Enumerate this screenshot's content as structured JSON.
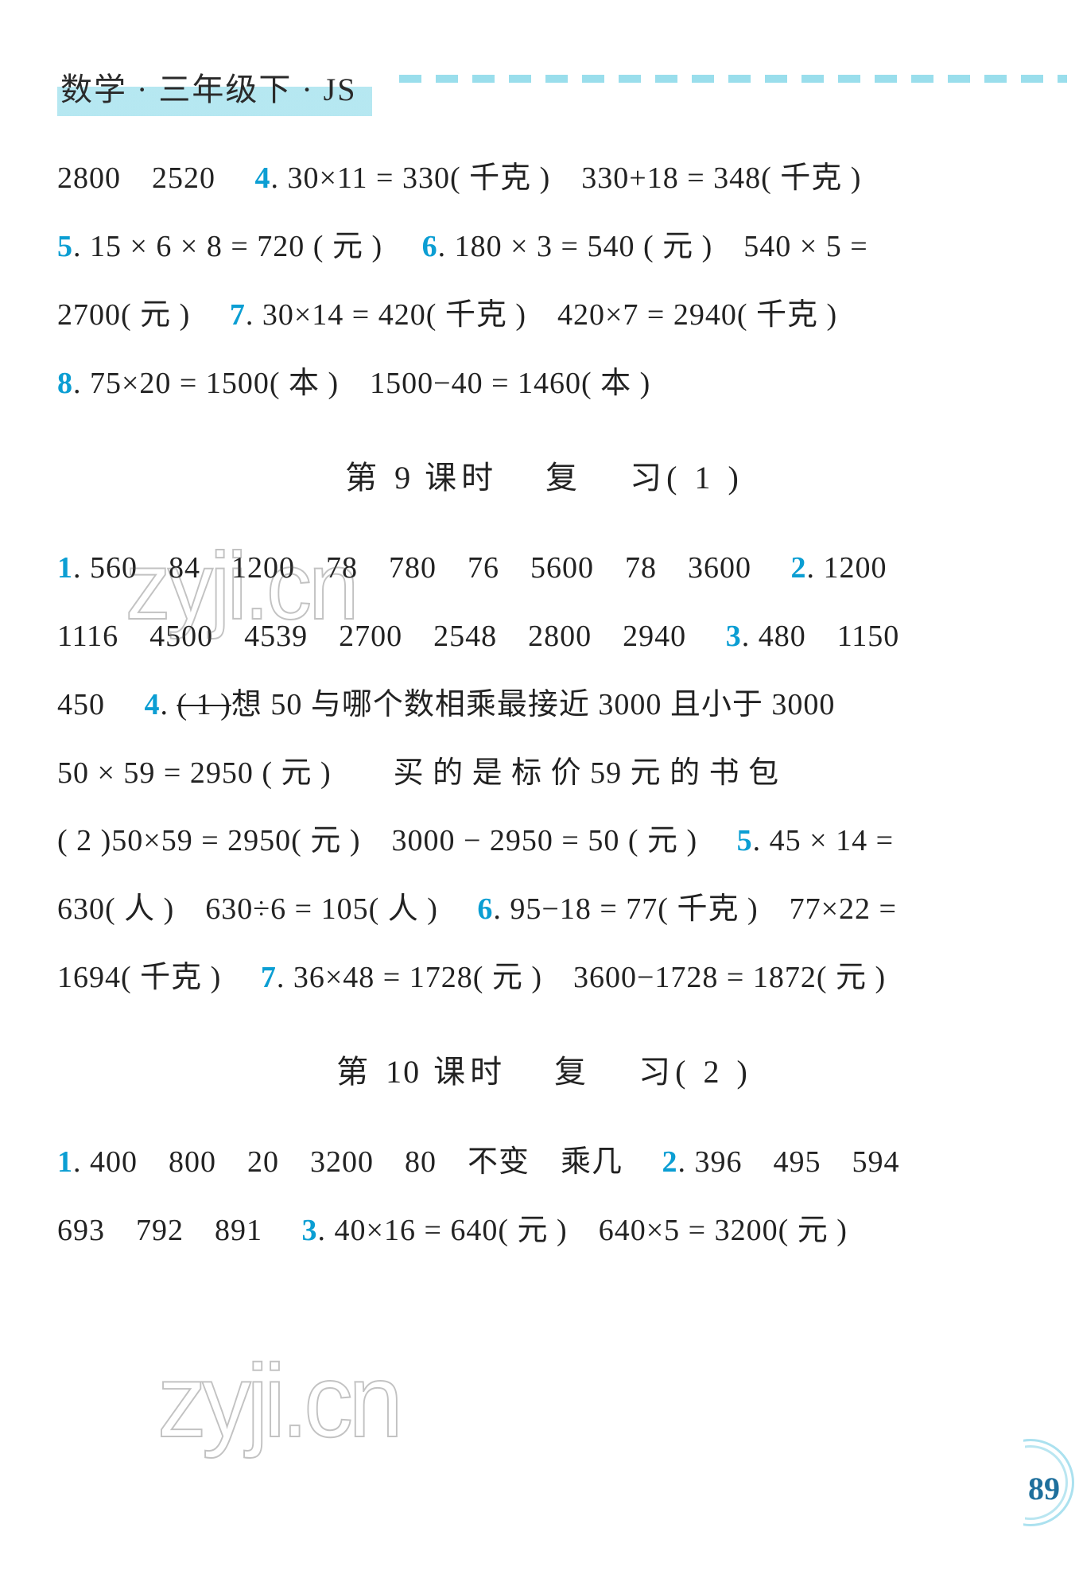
{
  "header": {
    "title": "数学 · 三年级下 · JS"
  },
  "top_block": {
    "line1_a": "2800　2520",
    "q4": "4",
    "line1_b": ".  30×11 = 330( 千克 )　330+18 = 348( 千克 )",
    "q5": "5",
    "line2_a": ".  15 × 6 × 8 = 720 ( 元 )",
    "q6": "6",
    "line2_b": ".  180 × 3 = 540 ( 元 )　540 × 5 =",
    "line3_a": "2700( 元 )",
    "q7": "7",
    "line3_b": ".  30×14 = 420( 千克 )　420×7 = 2940( 千克 )",
    "q8": "8",
    "line4": ".  75×20 = 1500( 本 )　1500−40 = 1460( 本 )"
  },
  "sec9": {
    "title_pre": "第 ",
    "title_num": "9",
    "title_mid": " 课时",
    "title_topic": "复",
    "title_topic2": "习",
    "title_suffix": "( 1 )",
    "q1": "1",
    "l1": ".  560　84　1200　78　780　76　5600　78　3600",
    "q2": "2",
    "l2a": ".  1200",
    "l2b": "1116　4500　4539　2700　2548　2800　2940",
    "q3": "3",
    "l3a": ".  480　1150",
    "l3b": "450",
    "q4": "4",
    "l4a_strike": "( 1 )",
    "l4a": "想 50 与哪个数相乘最接近 3000 且小于 3000",
    "l4b": "50 × 59 = 2950 ( 元 )　　买 的 是 标 价 59 元 的 书 包",
    "l4c": "( 2 )50×59 = 2950( 元 )　3000 − 2950 = 50 ( 元 )",
    "q5": "5",
    "l5a": ".  45 × 14 =",
    "l5b": "630( 人 )　630÷6 = 105( 人 )",
    "q6": "6",
    "l6a": ".  95−18 = 77( 千克 )　77×22 =",
    "l6b": "1694( 千克 )",
    "q7": "7",
    "l7": ".  36×48 = 1728( 元 )　3600−1728 = 1872( 元 )"
  },
  "sec10": {
    "title_pre": "第 ",
    "title_num": "10",
    "title_mid": " 课时",
    "title_topic": "复",
    "title_topic2": "习",
    "title_suffix": "( 2 )",
    "q1": "1",
    "l1": ".  400　800　20　3200　80　不变　乘几",
    "q2": "2",
    "l2a": ".  396　495　594",
    "l2b": "693　792　891",
    "q3": "3",
    "l3": ".  40×16 = 640( 元 )　640×5 = 3200( 元 )"
  },
  "page_number": "89",
  "watermark1": "zyji.cn",
  "watermark2": "zyji.cn",
  "colors": {
    "num_color": "#0b9ed3",
    "text_color": "#222222",
    "band_color": "#79d4e6",
    "page_num_color": "#1e6f9c"
  },
  "typography": {
    "body_fontsize_pt": 28,
    "title_fontsize_pt": 30,
    "line_height": 2.26
  }
}
